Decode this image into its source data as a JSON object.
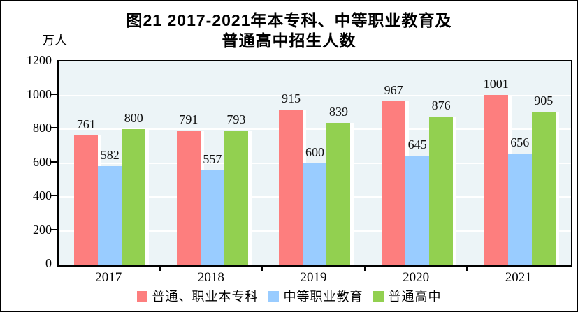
{
  "title": {
    "line1": "图21  2017-2021年本专科、中等职业教育及",
    "line2": "普通高中招生人数"
  },
  "chart_data": {
    "type": "bar",
    "title": "图21 2017-2021年本专科、中等职业教育及普通高中招生人数",
    "ylabel": "万人",
    "xlabel": "",
    "categories": [
      "2017",
      "2018",
      "2019",
      "2020",
      "2021"
    ],
    "series": [
      {
        "name": "普通、职业本专科",
        "color": "#FD7E7E",
        "values": [
          761,
          791,
          915,
          967,
          1001
        ]
      },
      {
        "name": "中等职业教育",
        "color": "#99CCFF",
        "values": [
          582,
          557,
          600,
          645,
          656
        ]
      },
      {
        "name": "普通高中",
        "color": "#92D050",
        "values": [
          800,
          793,
          839,
          876,
          905
        ]
      }
    ],
    "ylim": [
      0,
      1200
    ],
    "yticks": [
      0,
      200,
      400,
      600,
      800,
      1000,
      1200
    ],
    "grid": true,
    "gridline_color": "#FFFFFF",
    "plot_background_color": "#ECF4F7",
    "legend_position": "bottom"
  }
}
